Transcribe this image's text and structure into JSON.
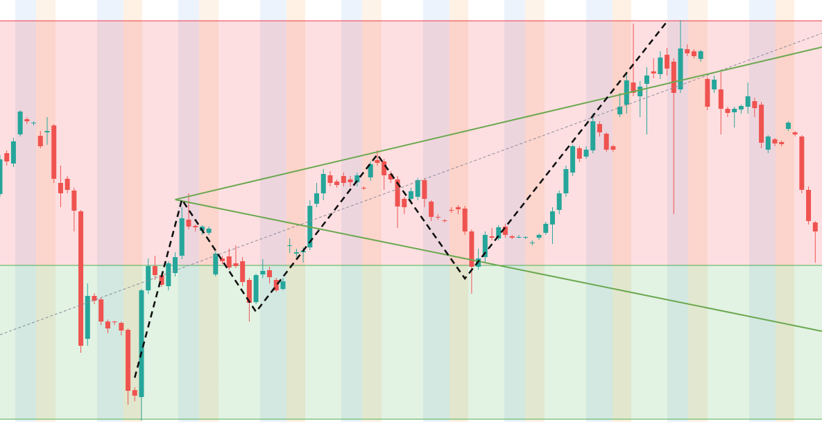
{
  "chart_data": {
    "type": "candlestick",
    "xlim": [
      0,
      122
    ],
    "ylim": [
      0,
      609
    ],
    "up_color": "#26a69a",
    "down_color": "#ef5350",
    "open": [
      329,
      388,
      373,
      415,
      437,
      431,
      413,
      418,
      428,
      345,
      351,
      334,
      304,
      120,
      182,
      177,
      145,
      145,
      143,
      133,
      46,
      36,
      190,
      225,
      212,
      196,
      215,
      240,
      292,
      283,
      276,
      273,
      213,
      236,
      239,
      229,
      232,
      205,
      173,
      213,
      219,
      205,
      192,
      254,
      243,
      245,
      252,
      315,
      330,
      356,
      347,
      355,
      350,
      346,
      338,
      353,
      378,
      376,
      358,
      350,
      322,
      322,
      325,
      349,
      318,
      296,
      291,
      306,
      310,
      308,
      275,
      224,
      238,
      268,
      265,
      282,
      268,
      266,
      266,
      258,
      266,
      273,
      285,
      306,
      330,
      360,
      395,
      383,
      392,
      430,
      416,
      398,
      444,
      458,
      490,
      470,
      488,
      506,
      502,
      530,
      520,
      480,
      538,
      535,
      524,
      495,
      480,
      480,
      452,
      447,
      451,
      455,
      463,
      458,
      393,
      408,
      404,
      423,
      418,
      412,
      335,
      288
    ],
    "high": [
      385,
      392,
      410,
      450,
      440,
      434,
      420,
      440,
      430,
      370,
      355,
      338,
      306,
      200,
      186,
      180,
      148,
      146,
      145,
      135,
      50,
      192,
      236,
      240,
      215,
      232,
      245,
      310,
      330,
      285,
      284,
      282,
      246,
      240,
      250,
      255,
      238,
      208,
      214,
      235,
      224,
      208,
      208,
      265,
      250,
      252,
      320,
      345,
      365,
      362,
      350,
      360,
      355,
      360,
      340,
      376,
      392,
      380,
      362,
      355,
      325,
      338,
      352,
      352,
      320,
      300,
      293,
      310,
      313,
      312,
      278,
      250,
      275,
      280,
      284,
      286,
      270,
      270,
      268,
      262,
      272,
      289,
      310,
      334,
      370,
      400,
      398,
      398,
      445,
      434,
      418,
      400,
      475,
      505,
      575,
      492,
      512,
      525,
      535,
      540,
      525,
      580,
      545,
      538,
      537,
      498,
      500,
      505,
      455,
      455,
      458,
      490,
      468,
      462,
      414,
      410,
      406,
      434,
      420,
      414,
      340,
      290
    ],
    "low": [
      325,
      370,
      368,
      412,
      430,
      428,
      395,
      400,
      345,
      310,
      330,
      275,
      100,
      110,
      170,
      140,
      128,
      140,
      125,
      25,
      30,
      2,
      185,
      205,
      195,
      190,
      210,
      235,
      278,
      275,
      270,
      270,
      210,
      228,
      220,
      222,
      196,
      145,
      170,
      208,
      200,
      188,
      190,
      244,
      238,
      230,
      248,
      310,
      320,
      340,
      338,
      340,
      340,
      340,
      335,
      348,
      370,
      335,
      345,
      280,
      300,
      315,
      320,
      310,
      290,
      292,
      288,
      302,
      300,
      270,
      185,
      220,
      230,
      262,
      262,
      266,
      264,
      265,
      264,
      255,
      263,
      270,
      257,
      300,
      325,
      355,
      375,
      380,
      388,
      412,
      390,
      390,
      440,
      445,
      470,
      440,
      415,
      496,
      495,
      500,
      300,
      475,
      528,
      525,
      520,
      450,
      475,
      415,
      440,
      425,
      445,
      445,
      440,
      395,
      388,
      398,
      398,
      420,
      412,
      330,
      285,
      230
    ],
    "close": [
      379,
      376,
      405,
      448,
      434,
      432,
      398,
      420,
      351,
      330,
      335,
      305,
      110,
      182,
      175,
      145,
      135,
      144,
      132,
      45,
      38,
      190,
      225,
      212,
      198,
      229,
      238,
      294,
      282,
      281,
      282,
      279,
      243,
      232,
      223,
      225,
      202,
      172,
      212,
      218,
      209,
      190,
      203,
      255,
      245,
      247,
      312,
      330,
      358,
      345,
      342,
      345,
      346,
      356,
      337,
      372,
      374,
      356,
      350,
      311,
      310,
      333,
      349,
      322,
      296,
      295,
      290,
      305,
      307,
      275,
      224,
      236,
      270,
      266,
      281,
      270,
      266,
      267,
      267,
      259,
      270,
      286,
      304,
      330,
      365,
      398,
      380,
      393,
      434,
      418,
      393,
      393,
      455,
      493,
      475,
      484,
      500,
      503,
      526,
      510,
      475,
      539,
      532,
      528,
      535,
      455,
      494,
      452,
      446,
      452,
      456,
      470,
      453,
      403,
      412,
      402,
      401,
      432,
      415,
      335,
      290,
      275
    ],
    "zones": [
      {
        "range": [
          226,
          579
        ],
        "color": "#f23645"
      },
      {
        "range": [
          4,
          226
        ],
        "color": "#4caf50"
      }
    ],
    "lines": [
      {
        "x": [
          0,
          122
        ],
        "values": [
          126,
          561
        ],
        "color": "#8a8a9a",
        "style": "thin-dashed"
      },
      {
        "x": [
          26,
          122
        ],
        "values": [
          321,
          541
        ],
        "color": "#6aa84f",
        "style": "solid"
      },
      {
        "x": [
          26,
          122
        ],
        "values": [
          321,
          131
        ],
        "color": "#6aa84f",
        "style": "solid"
      },
      {
        "x": [
          20,
          27,
          38,
          56,
          69,
          99
        ],
        "values": [
          64,
          321,
          159,
          386,
          207,
          578
        ],
        "color": "#111111",
        "style": "dashed"
      }
    ]
  }
}
